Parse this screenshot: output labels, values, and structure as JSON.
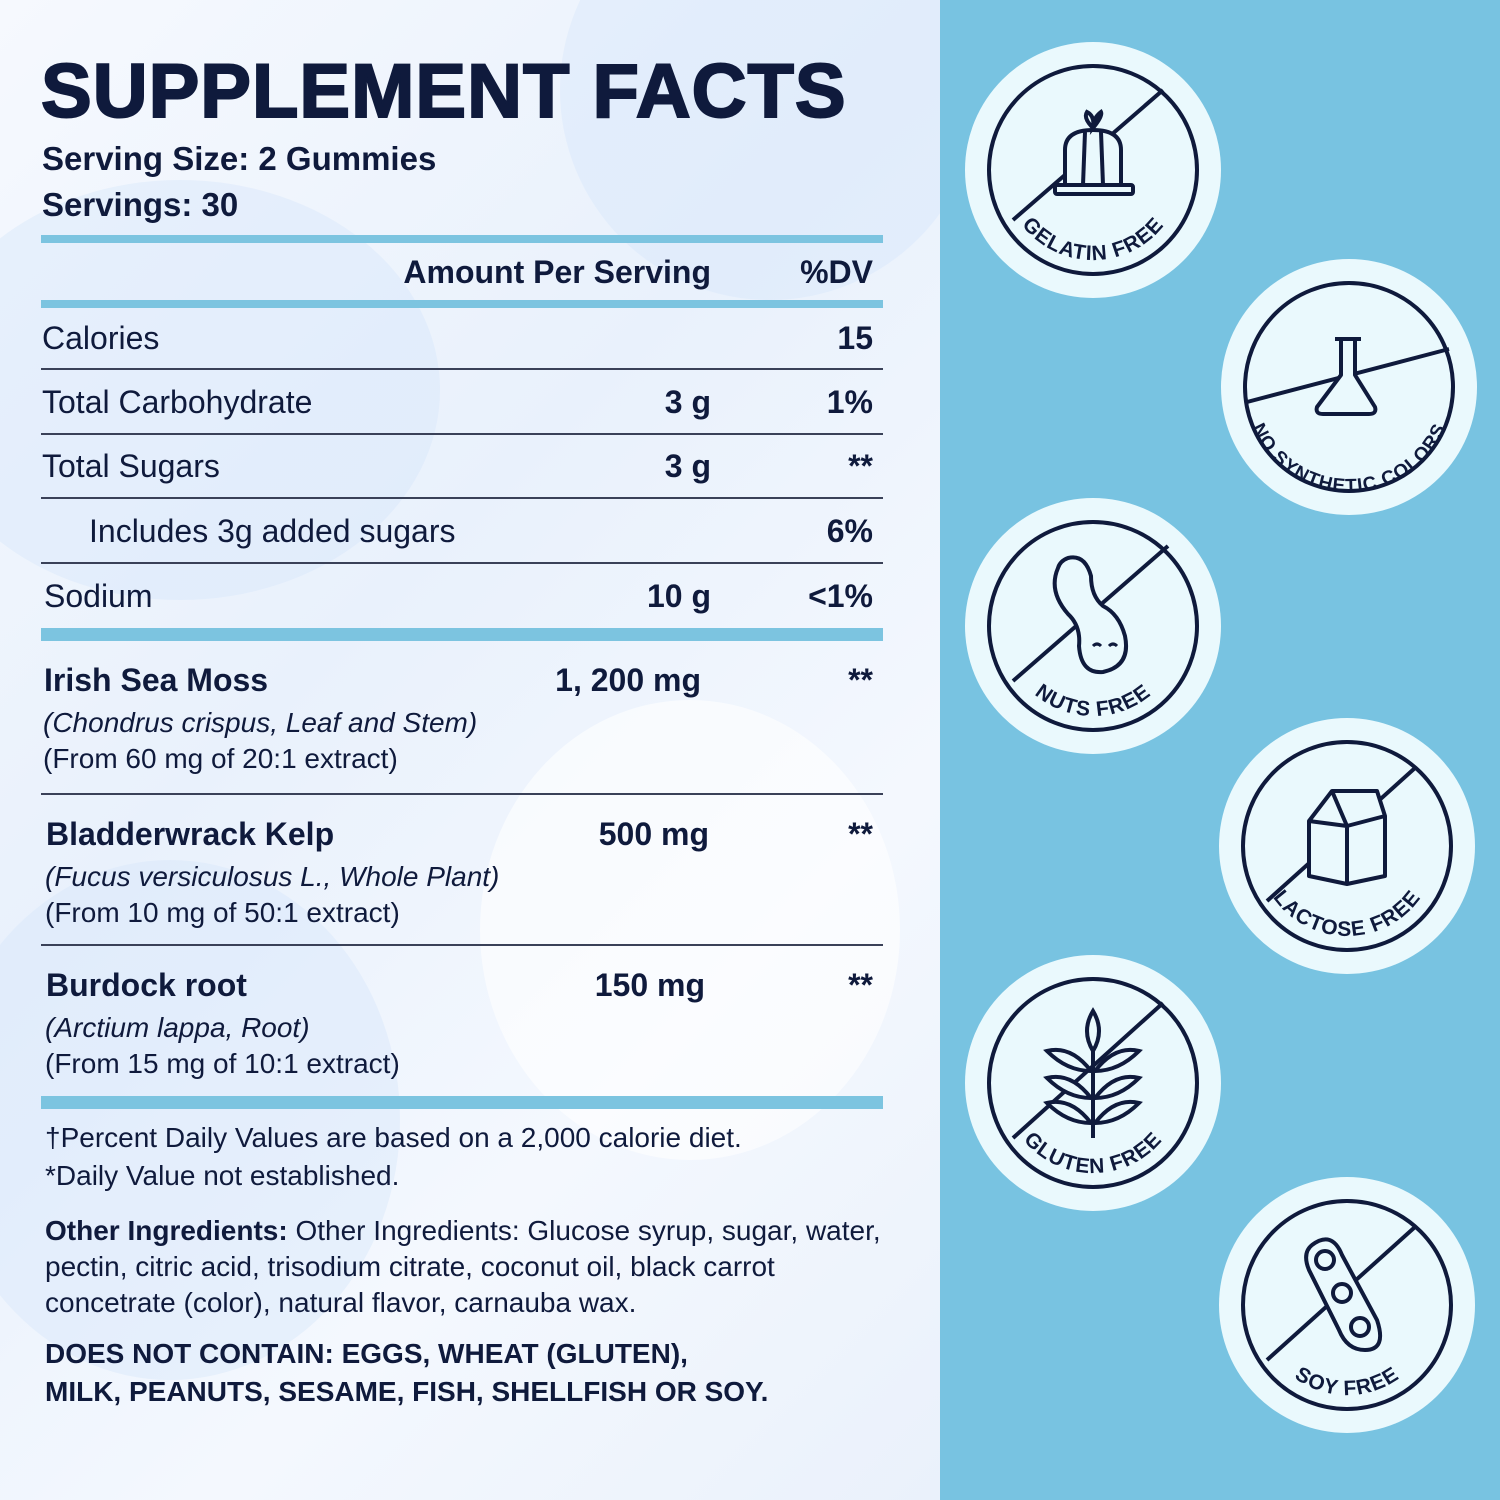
{
  "title": "SUPPLEMENT FACTS",
  "serving_size": "Serving Size: 2 Gummies",
  "servings": "Servings: 30",
  "header": {
    "amount": "Amount Per Serving",
    "dv": "%DV"
  },
  "nutrients": [
    {
      "name": "Calories",
      "amount": "",
      "dv": "15"
    },
    {
      "name": "Total Carbohydrate",
      "amount": "3 g",
      "dv": "1%"
    },
    {
      "name": "Total Sugars",
      "amount": "3 g",
      "dv": "**"
    },
    {
      "name": "Includes 3g added sugars",
      "amount": "",
      "dv": "6%"
    },
    {
      "name": "Sodium",
      "amount": "10 g",
      "dv": "<1%"
    }
  ],
  "ingredients": [
    {
      "name": "Irish Sea Moss",
      "amount": "1, 200 mg",
      "dv": "**",
      "source": "(Chondrus crispus, Leaf and Stem)",
      "extract": "(From 60 mg of 20:1 extract)"
    },
    {
      "name": "Bladderwrack Kelp",
      "amount": "500 mg",
      "dv": "**",
      "source": "(Fucus versiculosus L., Whole Plant)",
      "extract": "(From 10 mg of 50:1 extract)"
    },
    {
      "name": "Burdock root",
      "amount": "150 mg",
      "dv": "**",
      "source": "(Arctium lappa, Root)",
      "extract": "(From 15 mg of 10:1 extract)"
    }
  ],
  "footnotes": [
    "†Percent Daily Values are based on a 2,000 calorie diet.",
    "*Daily Value not established."
  ],
  "other_ingredients": {
    "label": "Other Ingredients:",
    "text": " Other Ingredients: Glucose syrup, sugar, water, pectin, citric acid, trisodium citrate, coconut oil, black carrot concetrate (color), natural flavor, carnauba wax."
  },
  "allergens": [
    "DOES NOT CONTAIN: EGGS, WHEAT (GLUTEN),",
    "MILK, PEANUTS, SESAME, FISH, SHELLFISH OR SOY."
  ],
  "badges": [
    {
      "label": "GELATIN FREE",
      "icon": "gelatin-icon"
    },
    {
      "label": "NO SYNTHETIC COLORS",
      "icon": "flask-icon"
    },
    {
      "label": "NUTS FREE",
      "icon": "peanut-icon"
    },
    {
      "label": "LACTOSE FREE",
      "icon": "milk-carton-icon"
    },
    {
      "label": "GLUTEN FREE",
      "icon": "wheat-icon"
    },
    {
      "label": "SOY FREE",
      "icon": "soybean-icon"
    }
  ],
  "colors": {
    "navy": "#0f1a3c",
    "accent_blue": "#7cc4e0",
    "panel_blue": "#78c3e1",
    "badge_fill": "#eaf9fd"
  }
}
